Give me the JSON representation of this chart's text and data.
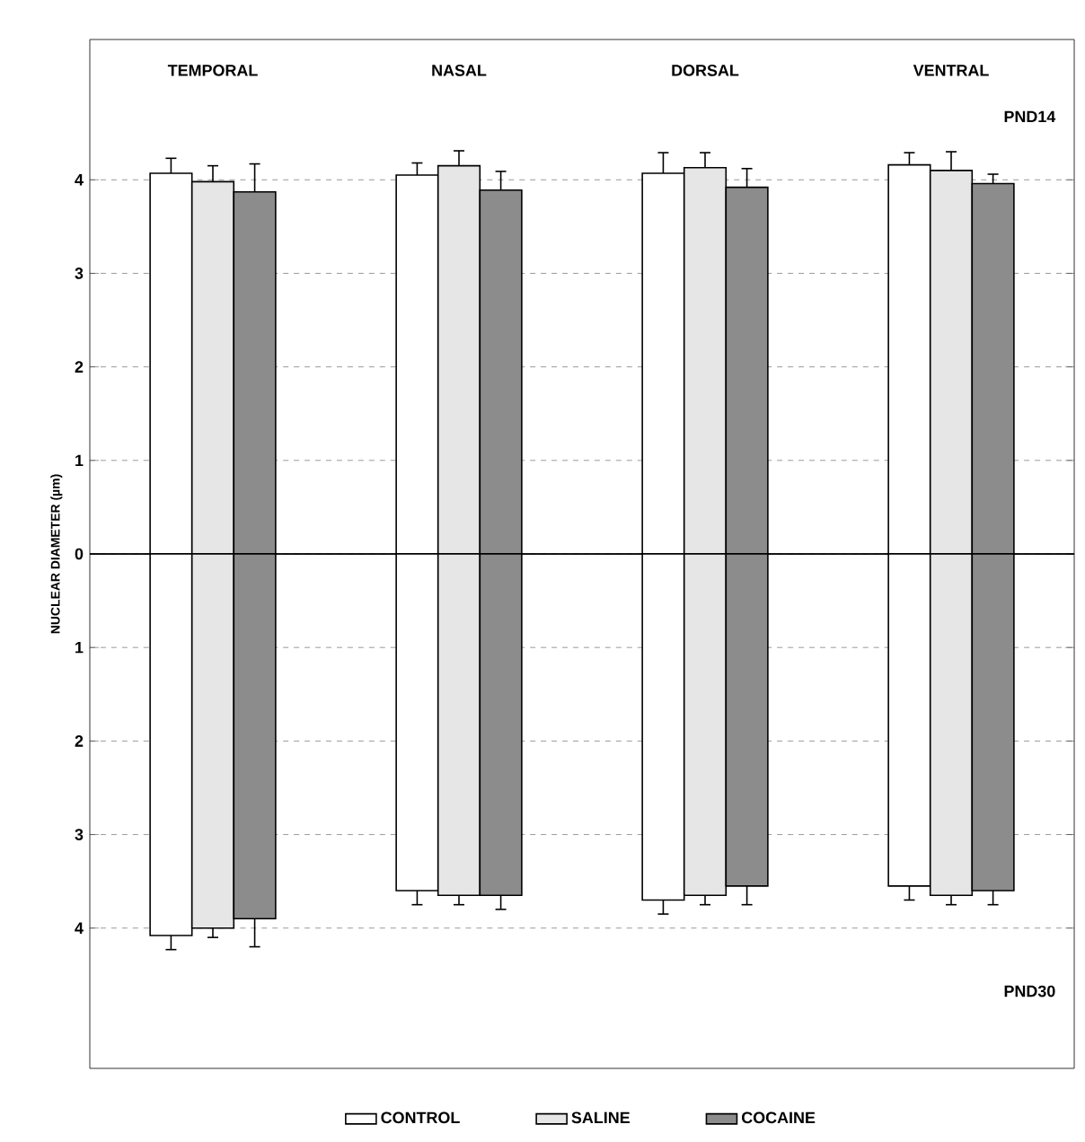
{
  "chart_data": [
    {
      "type": "bar",
      "categories": [
        "TEMPORAL",
        "NASAL",
        "DORSAL",
        "VENTRAL"
      ],
      "ylabel": "NUCLEAR DIAMETER (µm)",
      "series": [
        {
          "color": "#ffffff",
          "values": [
            4.07,
            4.05,
            4.07,
            4.16
          ],
          "errors": [
            0.16,
            0.13,
            0.22,
            0.13
          ]
        },
        {
          "color": "#e6e6e6",
          "values": [
            3.98,
            4.15,
            4.13,
            4.1
          ],
          "errors": [
            0.17,
            0.16,
            0.16,
            0.2
          ]
        },
        {
          "color": "#8c8c8c",
          "values": [
            3.87,
            3.89,
            3.92,
            3.96
          ],
          "errors": [
            0.3,
            0.2,
            0.2,
            0.1
          ]
        }
      ],
      "ylim": [
        0,
        5.5
      ],
      "yticks": [
        0,
        1,
        2,
        3,
        4
      ],
      "grid": "y",
      "ref_lines": [
        {
          "axis": "y",
          "value": 0,
          "color": "#000000"
        }
      ],
      "annotations": [
        "PND14"
      ]
    },
    {
      "type": "bar",
      "categories": [
        null,
        null,
        null,
        null
      ],
      "series": [
        {
          "name": "CONTROL",
          "color": "#ffffff",
          "values": [
            4.08,
            3.6,
            3.7,
            3.55
          ],
          "errors": [
            0.15,
            0.15,
            0.15,
            0.15
          ]
        },
        {
          "name": "SALINE",
          "color": "#e6e6e6",
          "values": [
            4.0,
            3.65,
            3.65,
            3.65
          ],
          "errors": [
            0.1,
            0.1,
            0.1,
            0.1
          ]
        },
        {
          "name": "COCAINE",
          "color": "#8c8c8c",
          "values": [
            3.9,
            3.65,
            3.55,
            3.6
          ],
          "errors": [
            0.3,
            0.15,
            0.2,
            0.15
          ]
        }
      ],
      "ylim": [
        5.5,
        0
      ],
      "yticks": [
        1,
        2,
        3,
        4
      ],
      "grid": "y",
      "tick_labels": "y",
      "legend": "bottom",
      "annotations": [
        "PND30"
      ]
    }
  ]
}
